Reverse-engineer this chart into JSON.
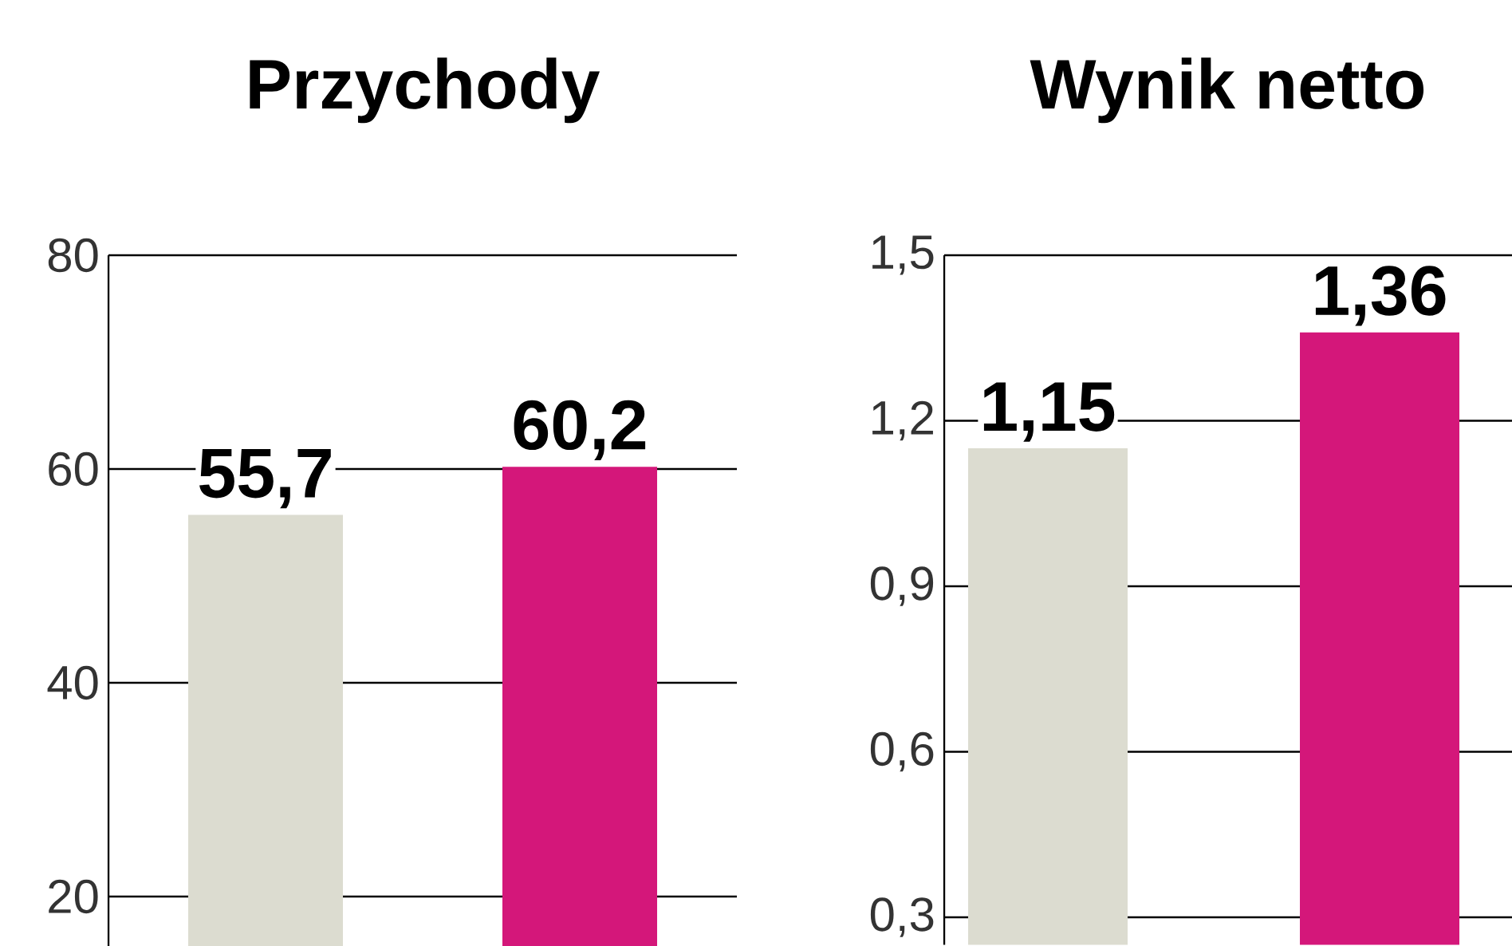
{
  "chart_data": [
    {
      "type": "bar",
      "title": "Przychody",
      "categories": [
        null,
        null
      ],
      "values": [
        55.7,
        60.2
      ],
      "colors": [
        "#dcdcd0",
        "#d4177a"
      ],
      "value_labels": [
        "55,7",
        "60,2"
      ],
      "ylim": [
        15,
        80
      ],
      "yticks": [
        20,
        40,
        60,
        80
      ],
      "grid": "y",
      "tick_labels": "y"
    },
    {
      "type": "bar",
      "title": "Wynik netto",
      "categories": [
        null,
        null
      ],
      "values": [
        1.15,
        1.36
      ],
      "colors": [
        "#dcdcd0",
        "#d4177a"
      ],
      "value_labels": [
        "1,15",
        "1,36"
      ],
      "ylim": [
        0.25,
        1.5
      ],
      "yticks": [
        {
          "value": 0.3,
          "label": "0,3"
        },
        {
          "value": 0.6,
          "label": "0,6"
        },
        {
          "value": 0.9,
          "label": "0,9"
        },
        {
          "value": 1.2,
          "label": "1,2"
        },
        {
          "value": 1.5,
          "label": "1,5"
        }
      ],
      "grid": "y",
      "tick_labels": "y"
    }
  ]
}
